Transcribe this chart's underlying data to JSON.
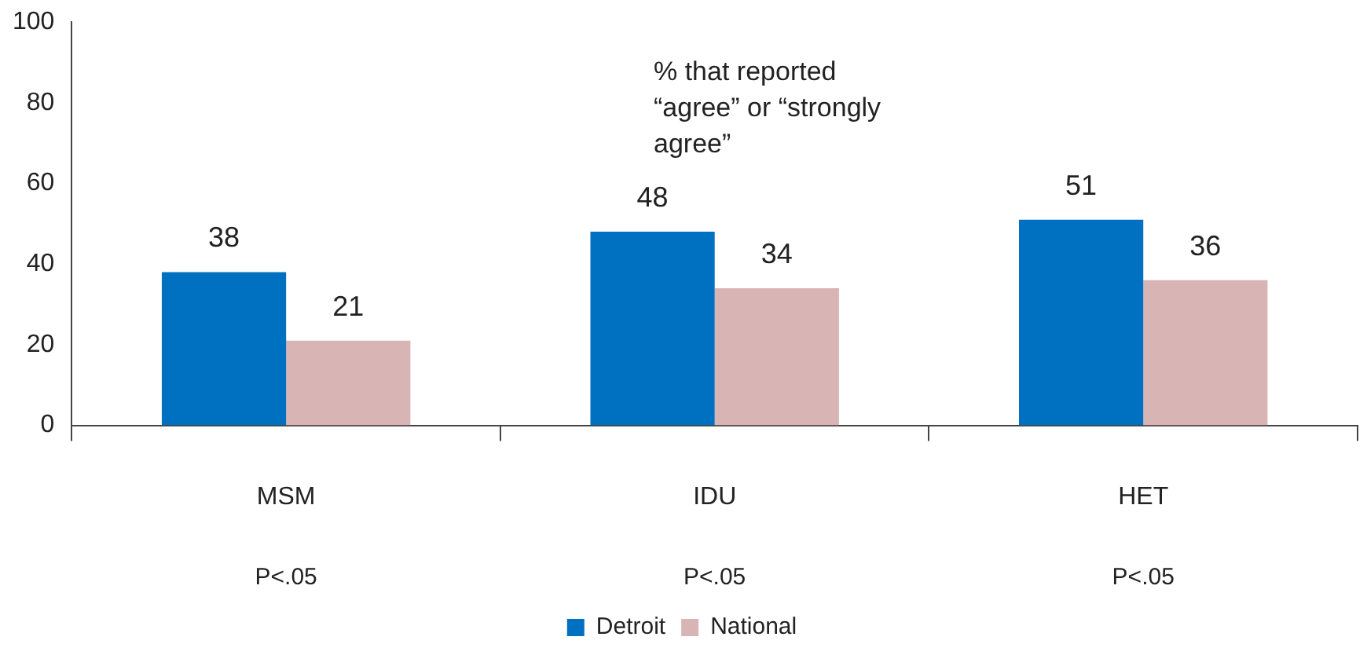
{
  "chart_data": {
    "type": "bar",
    "categories": [
      "MSM",
      "IDU",
      "HET"
    ],
    "series": [
      {
        "name": "Detroit",
        "color": "#0070c0",
        "values": [
          38,
          48,
          51
        ]
      },
      {
        "name": "National",
        "color": "#d8b4b4",
        "values": [
          21,
          34,
          36
        ]
      }
    ],
    "ylim": [
      0,
      100
    ],
    "yticks": [
      0,
      20,
      40,
      60,
      80,
      100
    ],
    "grid": false,
    "legend": "bottom",
    "data_labels": true,
    "annotations": [
      "% that reported “agree” or “strongly agree”",
      "P<.05",
      "P<.05",
      "P<.05"
    ]
  }
}
